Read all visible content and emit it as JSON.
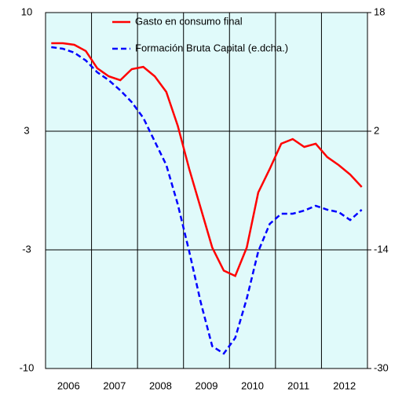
{
  "chart_data": {
    "type": "line",
    "x": [
      2006.125,
      2006.375,
      2006.625,
      2006.875,
      2007.125,
      2007.375,
      2007.625,
      2007.875,
      2008.125,
      2008.375,
      2008.625,
      2008.875,
      2009.125,
      2009.375,
      2009.625,
      2009.875,
      2010.125,
      2010.375,
      2010.625,
      2010.875,
      2011.125,
      2011.375,
      2011.625,
      2011.875,
      2012.125,
      2012.375,
      2012.625,
      2012.875
    ],
    "xlim": [
      2006,
      2013
    ],
    "xgrid": [
      2007,
      2008,
      2009,
      2010,
      2011,
      2012
    ],
    "year_labels": [
      {
        "value": 2006.5,
        "label": "2006"
      },
      {
        "value": 2007.5,
        "label": "2007"
      },
      {
        "value": 2008.5,
        "label": "2008"
      },
      {
        "value": 2009.5,
        "label": "2009"
      },
      {
        "value": 2010.5,
        "label": "2010"
      },
      {
        "value": 2011.5,
        "label": "2011"
      },
      {
        "value": 2012.5,
        "label": "2012"
      }
    ],
    "ylim": [
      -10,
      10
    ],
    "yticks": [
      {
        "value": -10,
        "label": "-10"
      },
      {
        "value": -3.3333,
        "label": "-3"
      },
      {
        "value": 3.3333,
        "label": "3"
      },
      {
        "value": 10,
        "label": "10"
      }
    ],
    "y2lim": [
      -30,
      18
    ],
    "y2ticks": [
      -30,
      -14,
      2,
      18
    ],
    "grid": true,
    "series": [
      {
        "name": "Gasto en consumo final",
        "color": "#ff0000",
        "dash": false,
        "values": [
          8.28,
          8.28,
          8.19,
          7.84,
          6.87,
          6.42,
          6.2,
          6.82,
          6.95,
          6.42,
          5.54,
          3.64,
          1.21,
          -1.0,
          -3.2,
          -4.5,
          -4.8,
          -3.2,
          -0.11,
          1.21,
          2.63,
          2.89,
          2.45,
          2.63,
          1.88,
          1.43,
          0.9,
          0.2
        ]
      },
      {
        "name": "Formación Bruta Capital (e.dcha.)",
        "color": "#0000ff",
        "dash": true,
        "axis": "y2",
        "values": [
          13.34,
          13.13,
          12.6,
          11.54,
          9.95,
          8.89,
          7.51,
          5.92,
          3.8,
          0.62,
          -2.56,
          -7.85,
          -14.21,
          -21.1,
          -26.99,
          -27.99,
          -25.87,
          -20.57,
          -14.21,
          -10.5,
          -9.13,
          -9.13,
          -8.7,
          -8.06,
          -8.59,
          -8.91,
          -9.97,
          -8.59
        ]
      }
    ]
  }
}
